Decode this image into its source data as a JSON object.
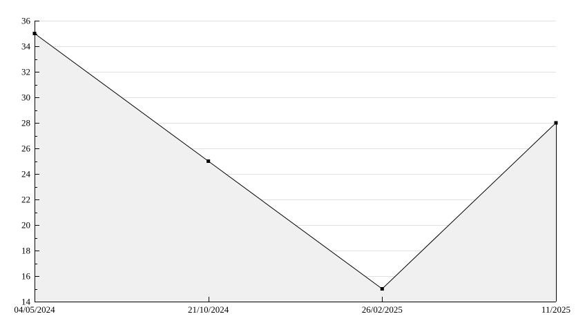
{
  "chart_data": {
    "type": "area",
    "title": "",
    "xlabel": "",
    "ylabel": "",
    "categories": [
      "04/05/2024",
      "21/10/2024",
      "26/02/2025",
      "11/2025"
    ],
    "values": [
      35,
      25,
      15,
      28
    ],
    "ylim": [
      14,
      36
    ],
    "y_major_step": 2,
    "y_minor_step": 1,
    "y_tick_labels": [
      "14",
      "16",
      "18",
      "20",
      "22",
      "24",
      "26",
      "28",
      "30",
      "32",
      "34",
      "36"
    ],
    "grid": true,
    "legend": "none",
    "marker": "filled-square",
    "colors": {
      "background": "#ffffff",
      "fill": "#f0f0f0",
      "grid": "#e0e0e0",
      "line": "#000000",
      "axis": "#000000",
      "text": "#000000"
    }
  }
}
